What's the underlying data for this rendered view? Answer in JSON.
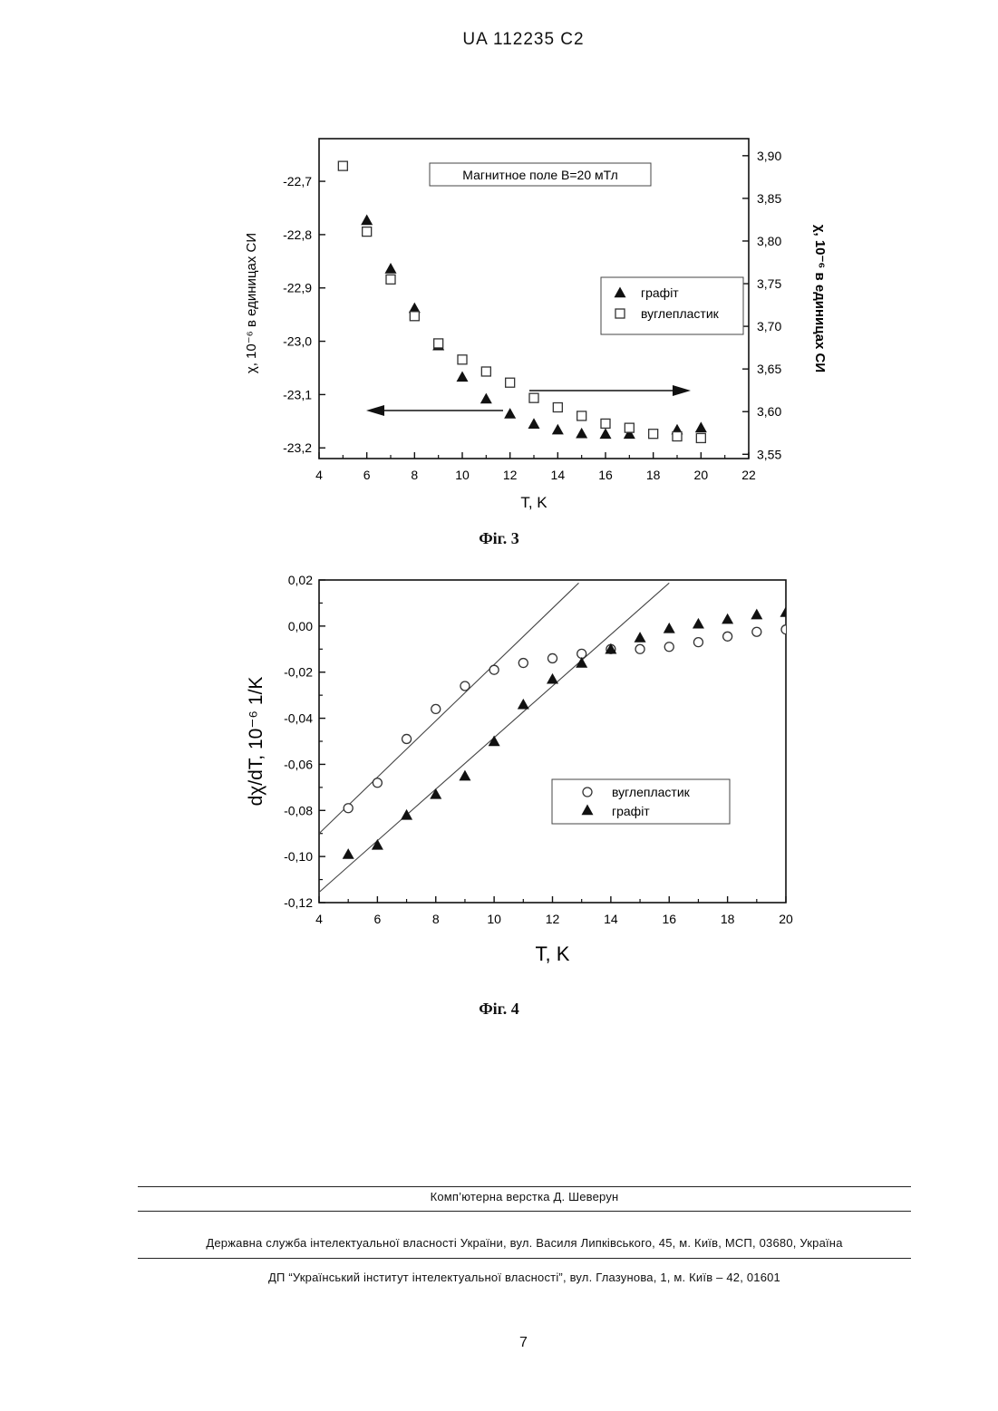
{
  "page": {
    "header": "UA   112235   C2",
    "page_number": "7",
    "footer": {
      "compositor": "Комп’ютерна верстка Д. Шеверун",
      "agency": "Державна служба інтелектуальної власності України, вул. Василя Липківського, 45, м. Київ, МСП, 03680, Україна",
      "institute": "ДП “Український інститут інтелектуальної власності”, вул. Глазунова, 1, м. Київ – 42, 01601"
    }
  },
  "figures": [
    {
      "caption": "Фіг. 3"
    },
    {
      "caption": "Фіг. 4"
    }
  ],
  "chart_data": [
    {
      "type": "scatter",
      "title": "",
      "annotation": "Магнитное поле B=20 мТл",
      "xlabel": "T, K",
      "ylabel": "χ, 10⁻⁶ в единицах СИ",
      "ylabel_right": "χ, 10⁻⁶ в единицах СИ",
      "xlim": [
        4,
        22
      ],
      "ylim": [
        -23.22,
        -22.62
      ],
      "ylim_right": [
        3.545,
        3.92
      ],
      "xticks": [
        "4",
        "6",
        "8",
        "10",
        "12",
        "14",
        "16",
        "18",
        "20",
        "22"
      ],
      "yticks_left": [
        "-22,7",
        "-22,8",
        "-22,9",
        "-23,0",
        "-23,1",
        "-23,2"
      ],
      "yticks_left_values": [
        -22.7,
        -22.8,
        -22.9,
        -23.0,
        -23.1,
        -23.2
      ],
      "yticks_right": [
        "3,90",
        "3,85",
        "3,80",
        "3,75",
        "3,70",
        "3,65",
        "3,60",
        "3,55"
      ],
      "yticks_right_values": [
        3.9,
        3.85,
        3.8,
        3.75,
        3.7,
        3.65,
        3.6,
        3.55
      ],
      "legend_position": "right",
      "legend_labels": [
        "графіт",
        "вуглепластик"
      ],
      "series": [
        {
          "name": "графіт",
          "marker": "filled-triangle",
          "axis": "left",
          "x": [
            6,
            7,
            8,
            9,
            10,
            11,
            12,
            13,
            14,
            15,
            16,
            17,
            19,
            20
          ],
          "y": [
            -22.773,
            -22.864,
            -22.938,
            -23.008,
            -23.067,
            -23.108,
            -23.136,
            -23.155,
            -23.166,
            -23.173,
            -23.174,
            -23.174,
            -23.166,
            -23.162
          ]
        },
        {
          "name": "вуглепластик",
          "marker": "open-square",
          "axis": "right",
          "x": [
            5,
            6,
            7,
            8,
            9,
            10,
            11,
            12,
            13,
            14,
            15,
            16,
            17,
            18,
            19,
            20
          ],
          "y": [
            3.888,
            3.811,
            3.755,
            3.712,
            3.68,
            3.661,
            3.647,
            3.634,
            3.616,
            3.605,
            3.595,
            3.586,
            3.581,
            3.574,
            3.571,
            3.569
          ]
        }
      ]
    },
    {
      "type": "scatter",
      "title": "",
      "xlabel": "T, K",
      "ylabel": "dχ/dT, 10⁻⁶ 1/K",
      "xlim": [
        4,
        20
      ],
      "ylim": [
        -0.12,
        0.02
      ],
      "xticks": [
        "4",
        "6",
        "8",
        "10",
        "12",
        "14",
        "16",
        "18",
        "20"
      ],
      "yticks": [
        "0,02",
        "0,00",
        "-0,02",
        "-0,04",
        "-0,06",
        "-0,08",
        "-0,10",
        "-0,12"
      ],
      "yticks_values": [
        0.02,
        0.0,
        -0.02,
        -0.04,
        -0.06,
        -0.08,
        -0.1,
        -0.12
      ],
      "legend_position": "center-right",
      "legend_labels": [
        "вуглепластик",
        "графіт"
      ],
      "series": [
        {
          "name": "вуглепластик",
          "marker": "open-circle",
          "x": [
            5,
            6,
            7,
            8,
            9,
            10,
            11,
            12,
            13,
            14,
            15,
            16,
            17,
            18,
            19,
            20
          ],
          "y": [
            -0.079,
            -0.068,
            -0.049,
            -0.036,
            -0.026,
            -0.019,
            -0.016,
            -0.014,
            -0.012,
            -0.01,
            -0.01,
            -0.009,
            -0.007,
            -0.0045,
            -0.0025,
            -0.0015
          ]
        },
        {
          "name": "графіт",
          "marker": "filled-triangle",
          "x": [
            5,
            6,
            7,
            8,
            9,
            10,
            11,
            12,
            13,
            14,
            15,
            16,
            17,
            18,
            19,
            20
          ],
          "y": [
            -0.099,
            -0.095,
            -0.082,
            -0.073,
            -0.065,
            -0.05,
            -0.034,
            -0.023,
            -0.016,
            -0.01,
            -0.005,
            -0.001,
            0.001,
            0.003,
            0.005,
            0.006
          ]
        }
      ],
      "fit_lines": [
        {
          "x": [
            4,
            12.9
          ],
          "y": [
            -0.09,
            0.0187
          ]
        },
        {
          "x": [
            4,
            16.0
          ],
          "y": [
            -0.1155,
            0.0187
          ]
        }
      ]
    }
  ]
}
